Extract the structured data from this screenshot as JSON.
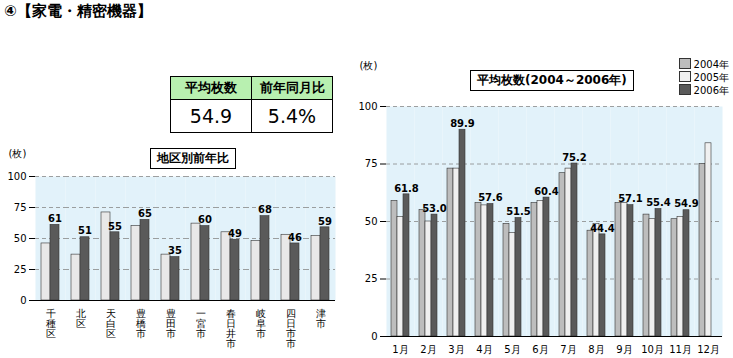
{
  "header": "④【家電・精密機器】",
  "summary": {
    "items": [
      {
        "label": "平均枚数",
        "value": 54.9,
        "value_label": "54.9"
      },
      {
        "label": "前年同月比",
        "value": 5.4,
        "value_label": "5.4%"
      }
    ]
  },
  "chart_data": [
    {
      "type": "bar",
      "title": "地区別前年比",
      "y_label": "(枚)",
      "categories": [
        "千種区",
        "北区",
        "天白区",
        "豊橋市",
        "豊田市",
        "一宮市",
        "春日井市",
        "岐阜市",
        "四日市市",
        "津市"
      ],
      "series": [
        {
          "color": "#e8e8e8",
          "values": [
            46,
            37,
            71,
            60,
            37,
            62,
            55,
            48,
            53,
            52
          ]
        },
        {
          "color": "#5a5a5a",
          "values": [
            61,
            51,
            55,
            65,
            35,
            60,
            49,
            68,
            46,
            59
          ],
          "data_labels": true
        }
      ],
      "ylim": [
        0,
        100
      ],
      "yticks": [
        0,
        25,
        50,
        75,
        100
      ],
      "grid": true
    },
    {
      "type": "bar",
      "title": "平均枚数(2004～2006年)",
      "y_label": "(枚)",
      "categories": [
        "1月",
        "2月",
        "3月",
        "4月",
        "5月",
        "6月",
        "7月",
        "8月",
        "9月",
        "10月",
        "11月",
        "12月"
      ],
      "series": [
        {
          "name": "2004年",
          "color": "#bdbdbd",
          "values": [
            59,
            55,
            73,
            58,
            49,
            58,
            71,
            46,
            58,
            53,
            51,
            75
          ]
        },
        {
          "name": "2005年",
          "color": "#f0f0f0",
          "values": [
            52,
            50,
            73,
            57,
            45,
            59,
            73,
            49,
            58,
            51,
            52,
            84
          ]
        },
        {
          "name": "2006年",
          "color": "#5a5a5a",
          "values": [
            61.8,
            53.0,
            89.9,
            57.6,
            51.5,
            60.4,
            75.2,
            44.4,
            57.1,
            55.4,
            54.9,
            null
          ],
          "value_labels": [
            "61.8",
            "53.0",
            "89.9",
            "57.6",
            "51.5",
            "60.4",
            "75.2",
            "44.4",
            "57.1",
            "55.4",
            "54.9",
            null
          ],
          "data_labels": true
        }
      ],
      "ylim": [
        0,
        100
      ],
      "yticks": [
        0,
        25,
        50,
        75,
        100
      ],
      "grid": true,
      "legend": "top-right"
    }
  ]
}
